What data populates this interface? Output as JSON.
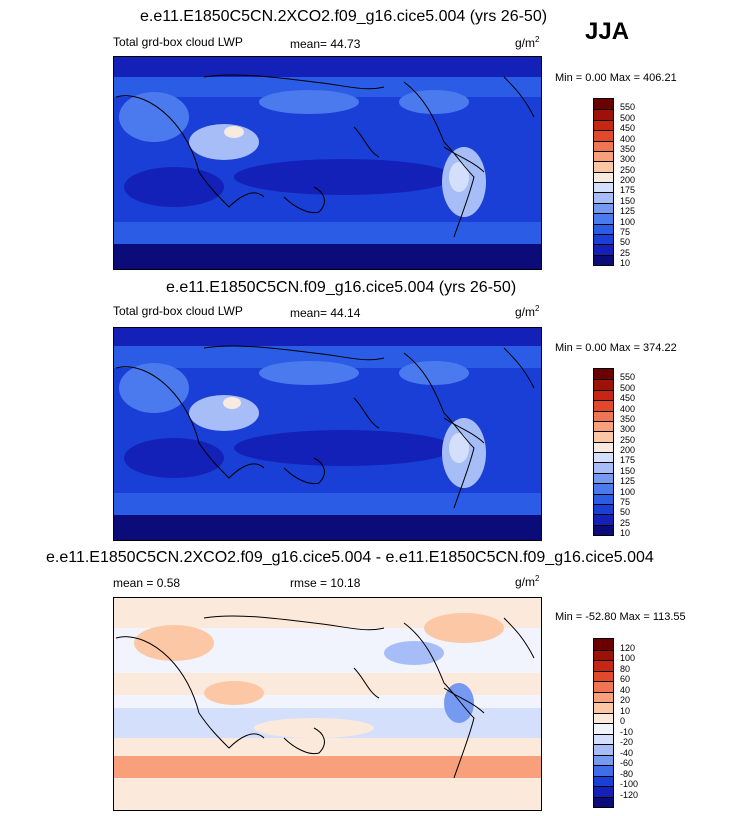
{
  "season": "JJA",
  "colors": {
    "lwp_scale": [
      "#0b0b7a",
      "#1321b8",
      "#1a3fd6",
      "#2b5ce6",
      "#4a7aee",
      "#7699f2",
      "#a6bdf7",
      "#d4e0fb",
      "#f7eadf",
      "#fbc7a4",
      "#f8a07c",
      "#f07552",
      "#e2482c",
      "#c72615",
      "#9c1108",
      "#6a0000"
    ],
    "diff_scale": [
      "#0b0b7a",
      "#1321b8",
      "#1a3fd6",
      "#3f6ee9",
      "#7699f2",
      "#a6bdf7",
      "#d4e0fb",
      "#f2f4fd",
      "#fbe9dc",
      "#fbc7a4",
      "#f8a07c",
      "#f07552",
      "#e2482c",
      "#c72615",
      "#9c1108",
      "#6a0000"
    ]
  },
  "panels": [
    {
      "title": "e.e11.E1850C5CN.2XCO2.f09_g16.cice5.004 (yrs 26-50)",
      "left_label": "Total grd-box cloud LWP",
      "mid_label": "mean=  44.73",
      "units": "g/m",
      "units_sup": "2",
      "minmax": "Min =   0.00 Max = 406.21",
      "colorbar_ticks": [
        "550",
        "500",
        "450",
        "400",
        "350",
        "300",
        "250",
        "200",
        "175",
        "150",
        "125",
        "100",
        "75",
        "50",
        "25",
        "10"
      ]
    },
    {
      "title": "e.e11.E1850C5CN.f09_g16.cice5.004 (yrs 26-50)",
      "left_label": "Total grd-box cloud LWP",
      "mid_label": "mean=  44.14",
      "units": "g/m",
      "units_sup": "2",
      "minmax": "Min =   0.00 Max = 374.22",
      "colorbar_ticks": [
        "550",
        "500",
        "450",
        "400",
        "350",
        "300",
        "250",
        "200",
        "175",
        "150",
        "125",
        "100",
        "75",
        "50",
        "25",
        "10"
      ]
    },
    {
      "title": "e.e11.E1850C5CN.2XCO2.f09_g16.cice5.004 - e.e11.E1850C5CN.f09_g16.cice5.004",
      "left_label": "mean =   0.58",
      "mid_label": "rmse =  10.18",
      "units": "g/m",
      "units_sup": "2",
      "minmax": "Min = -52.80 Max = 113.55",
      "colorbar_ticks": [
        "120",
        "100",
        "80",
        "60",
        "40",
        "20",
        "10",
        "0",
        "-10",
        "-20",
        "-40",
        "-60",
        "-80",
        "-100",
        "-120"
      ]
    }
  ]
}
